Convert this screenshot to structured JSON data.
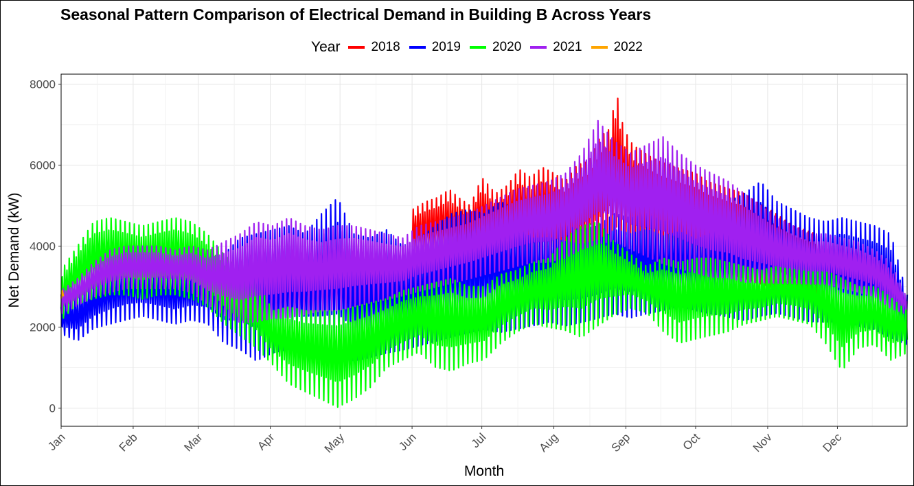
{
  "chart_data": {
    "type": "line",
    "title": "Seasonal Pattern Comparison of Electrical Demand in Building B Across Years",
    "xlabel": "Month",
    "ylabel": "Net Demand (kW)",
    "legend_title": "Year",
    "legend_position": "top",
    "grid": true,
    "ylim": [
      -450,
      8250
    ],
    "y_ticks": [
      0,
      2000,
      4000,
      6000,
      8000
    ],
    "y_tick_labels": [
      "0",
      "2000",
      "4000",
      "6000",
      "8000"
    ],
    "x_ticks": [
      "Jan",
      "Feb",
      "Mar",
      "Apr",
      "May",
      "Jun",
      "Jul",
      "Aug",
      "Sep",
      "Oct",
      "Nov",
      "Dec"
    ],
    "x_units": "day of year",
    "x_ticks_day": [
      1,
      32,
      60,
      91,
      121,
      152,
      182,
      213,
      244,
      274,
      305,
      335
    ],
    "xlim": [
      1,
      365
    ],
    "series": [
      {
        "name": "2018",
        "color": "#ff0000",
        "x_day": [
          152,
          158,
          163,
          168,
          172,
          177,
          182,
          188,
          193,
          198,
          203,
          208,
          213,
          218,
          223,
          228,
          233,
          237,
          240,
          243,
          247,
          252,
          258,
          263,
          268,
          274,
          279,
          284,
          289,
          295,
          300,
          306,
          311,
          316,
          321,
          326
        ],
        "low": [
          3600,
          3500,
          3550,
          3450,
          3500,
          3600,
          3500,
          3450,
          3550,
          3600,
          3500,
          3650,
          3550,
          3700,
          3600,
          3800,
          3900,
          4200,
          4300,
          4200,
          4000,
          3900,
          3800,
          3600,
          3500,
          3400,
          3350,
          3300,
          3200,
          3100,
          3000,
          2900,
          2800,
          2700,
          2600,
          2500
        ],
        "high": [
          4900,
          5100,
          5200,
          5400,
          5200,
          5000,
          5700,
          5300,
          5500,
          5900,
          5700,
          5950,
          5800,
          5600,
          6000,
          6100,
          6700,
          6900,
          7800,
          6900,
          6500,
          6300,
          6100,
          6000,
          5900,
          5800,
          5600,
          5500,
          5400,
          5300,
          5100,
          4900,
          4700,
          4500,
          4400,
          4300
        ]
      },
      {
        "name": "2019",
        "color": "#0000ff",
        "x_day": [
          1,
          8,
          15,
          22,
          29,
          36,
          43,
          50,
          57,
          64,
          71,
          78,
          85,
          92,
          99,
          106,
          113,
          120,
          127,
          134,
          141,
          148,
          155,
          162,
          169,
          176,
          183,
          190,
          197,
          204,
          211,
          218,
          225,
          232,
          239,
          246,
          253,
          260,
          267,
          274,
          281,
          288,
          295,
          302,
          309,
          316,
          323,
          330,
          337,
          344,
          351,
          358,
          365
        ],
        "low": [
          1800,
          1600,
          1900,
          2000,
          2100,
          2200,
          2100,
          2000,
          2100,
          2000,
          1500,
          1300,
          1000,
          1200,
          1300,
          1400,
          1200,
          1100,
          1000,
          1100,
          1200,
          1300,
          1400,
          1500,
          1600,
          1700,
          1800,
          1700,
          1800,
          1900,
          2000,
          1900,
          2000,
          2100,
          2200,
          2100,
          2200,
          2300,
          2400,
          2300,
          2200,
          2100,
          2000,
          2100,
          2200,
          2100,
          2000,
          2000,
          2000,
          1900,
          1800,
          1600,
          1500
        ],
        "high": [
          2500,
          2800,
          3200,
          3500,
          3700,
          3600,
          3600,
          3500,
          3600,
          3700,
          3800,
          4200,
          4300,
          4400,
          4500,
          4300,
          4800,
          5200,
          4300,
          4200,
          4400,
          4000,
          4200,
          4500,
          4800,
          4900,
          4800,
          5100,
          4900,
          4600,
          4600,
          4500,
          4400,
          4500,
          4800,
          4700,
          4800,
          4600,
          4700,
          4500,
          4700,
          5100,
          5300,
          5600,
          5100,
          4900,
          4700,
          4600,
          4700,
          4600,
          4500,
          4300,
          2800
        ]
      },
      {
        "name": "2020",
        "color": "#00ff00",
        "x_day": [
          1,
          8,
          15,
          22,
          29,
          36,
          43,
          50,
          57,
          64,
          71,
          78,
          85,
          92,
          99,
          106,
          113,
          120,
          127,
          134,
          141,
          148,
          155,
          162,
          169,
          176,
          183,
          190,
          197,
          204,
          211,
          218,
          225,
          232,
          239,
          246,
          253,
          260,
          267,
          274,
          281,
          288,
          295,
          302,
          309,
          316,
          323,
          330,
          337,
          344,
          351,
          358,
          365
        ],
        "low": [
          2100,
          2500,
          2600,
          2700,
          2700,
          2600,
          2700,
          2700,
          2600,
          2400,
          2000,
          1700,
          1400,
          1000,
          500,
          300,
          100,
          -100,
          100,
          400,
          900,
          1100,
          1300,
          900,
          800,
          1000,
          1100,
          1500,
          1800,
          2000,
          1900,
          1800,
          1600,
          1900,
          2200,
          2400,
          2300,
          1800,
          1500,
          1600,
          1700,
          1800,
          2000,
          2100,
          2200,
          2100,
          2000,
          1500,
          800,
          1400,
          1500,
          1100,
          1300
        ],
        "high": [
          3400,
          4000,
          4600,
          4700,
          4600,
          4500,
          4600,
          4700,
          4600,
          4300,
          3800,
          3400,
          3200,
          2400,
          2500,
          2400,
          2400,
          2400,
          2500,
          2600,
          2700,
          2900,
          3000,
          3100,
          3200,
          3000,
          3000,
          3300,
          3400,
          3600,
          3700,
          4200,
          4500,
          4600,
          4100,
          3800,
          3500,
          3700,
          3600,
          3700,
          3700,
          3600,
          3500,
          3400,
          3500,
          3600,
          3500,
          3400,
          3200,
          3000,
          3000,
          2800,
          2600
        ]
      },
      {
        "name": "2021",
        "color": "#a020f0",
        "x_day": [
          1,
          8,
          15,
          22,
          29,
          36,
          43,
          50,
          57,
          64,
          71,
          78,
          85,
          92,
          99,
          106,
          113,
          120,
          127,
          134,
          141,
          148,
          155,
          162,
          169,
          176,
          183,
          190,
          197,
          204,
          211,
          218,
          225,
          232,
          239,
          246,
          253,
          260,
          267,
          274,
          281,
          288,
          295,
          302,
          309,
          316,
          323,
          330,
          337,
          344,
          351,
          358,
          365
        ],
        "low": [
          2300,
          2500,
          2700,
          2800,
          2900,
          2900,
          2900,
          2900,
          2800,
          2500,
          2200,
          2000,
          2000,
          2100,
          2100,
          2200,
          2300,
          2300,
          2400,
          2500,
          2600,
          2700,
          2800,
          2900,
          3000,
          3100,
          3200,
          3300,
          3400,
          3500,
          3500,
          3600,
          3800,
          3900,
          4000,
          3800,
          3600,
          3400,
          3300,
          3200,
          3100,
          3100,
          3000,
          3000,
          3000,
          3000,
          3000,
          3000,
          2900,
          2800,
          2700,
          2400,
          2300
        ],
        "high": [
          2900,
          3200,
          3600,
          3900,
          4000,
          4000,
          4000,
          3900,
          4000,
          3900,
          4100,
          4300,
          4600,
          4500,
          4700,
          4500,
          4400,
          4500,
          4500,
          4400,
          4300,
          4200,
          4500,
          4600,
          4700,
          4800,
          5000,
          5200,
          5400,
          5500,
          5600,
          5800,
          6300,
          7100,
          6600,
          6300,
          6500,
          6700,
          6300,
          6000,
          5800,
          5600,
          5300,
          5000,
          4700,
          4500,
          4300,
          4300,
          4200,
          4100,
          3900,
          3600,
          2700
        ]
      },
      {
        "name": "2022",
        "color": "#ffa500",
        "x_day": [
          1,
          2
        ],
        "low": [
          2700,
          2700
        ],
        "high": [
          2900,
          2900
        ]
      }
    ]
  }
}
